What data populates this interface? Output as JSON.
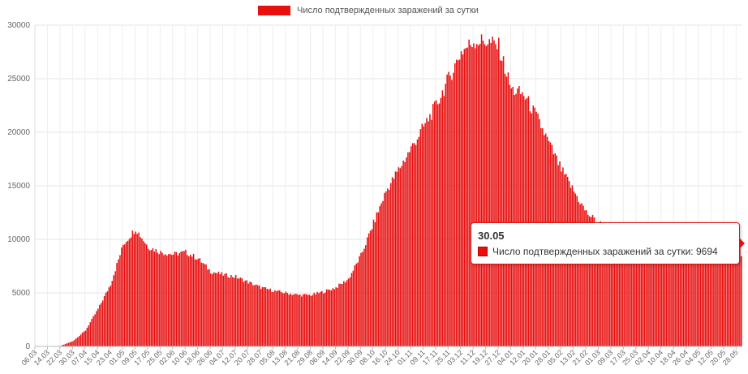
{
  "legend": {
    "label": "Число подтвержденных заражений за сутки",
    "color": "#e80f0f"
  },
  "tooltip": {
    "date": "30.05",
    "label": "Число подтвержденных заражений за сутки: 9694"
  },
  "chart_data": {
    "type": "bar",
    "title": "",
    "xlabel": "",
    "ylabel": "",
    "ylim": [
      0,
      30000
    ],
    "yticks": [
      0,
      5000,
      10000,
      15000,
      20000,
      25000,
      30000
    ],
    "grid": true,
    "legend_position": "top",
    "bar_color": "#e80f0f",
    "xtick_labels": [
      "06.03",
      "14.03",
      "22.03",
      "30.03",
      "07.04",
      "15.04",
      "23.04",
      "01.05",
      "09.05",
      "17.05",
      "25.05",
      "02.06",
      "10.06",
      "18.06",
      "26.06",
      "04.07",
      "12.07",
      "20.07",
      "28.07",
      "05.08",
      "13.08",
      "21.08",
      "29.08",
      "06.09",
      "14.09",
      "22.09",
      "30.09",
      "08.10",
      "16.10",
      "24.10",
      "01.11",
      "09.11",
      "17.11",
      "25.11",
      "03.12",
      "11.12",
      "19.12",
      "27.12",
      "04.01",
      "12.01",
      "20.01",
      "28.01",
      "05.02",
      "13.02",
      "21.02",
      "01.03",
      "09.03",
      "17.03",
      "25.03",
      "02.04",
      "10.04",
      "18.04",
      "26.04",
      "04.05",
      "12.05",
      "20.05",
      "28.05"
    ],
    "series": [
      {
        "name": "Число подтвержденных заражений за сутки",
        "anchors": [
          [
            "06.03",
            0
          ],
          [
            "14.03",
            0
          ],
          [
            "22.03",
            50
          ],
          [
            "30.03",
            500
          ],
          [
            "07.04",
            1500
          ],
          [
            "15.04",
            3500
          ],
          [
            "23.04",
            5800
          ],
          [
            "01.05",
            9500
          ],
          [
            "09.05",
            11000
          ],
          [
            "17.05",
            9300
          ],
          [
            "25.05",
            8800
          ],
          [
            "02.06",
            8600
          ],
          [
            "10.06",
            8800
          ],
          [
            "18.06",
            8200
          ],
          [
            "26.06",
            7000
          ],
          [
            "04.07",
            6700
          ],
          [
            "12.07",
            6500
          ],
          [
            "20.07",
            6000
          ],
          [
            "28.07",
            5500
          ],
          [
            "05.08",
            5200
          ],
          [
            "13.08",
            5000
          ],
          [
            "21.08",
            4800
          ],
          [
            "29.08",
            4800
          ],
          [
            "06.09",
            5100
          ],
          [
            "14.09",
            5500
          ],
          [
            "22.09",
            6300
          ],
          [
            "30.09",
            8500
          ],
          [
            "08.10",
            11500
          ],
          [
            "16.10",
            14500
          ],
          [
            "24.10",
            16500
          ],
          [
            "01.11",
            18500
          ],
          [
            "09.11",
            20500
          ],
          [
            "17.11",
            22500
          ],
          [
            "25.11",
            25000
          ],
          [
            "03.12",
            27500
          ],
          [
            "11.12",
            28500
          ],
          [
            "19.12",
            28500
          ],
          [
            "27.12",
            28000
          ],
          [
            "04.01",
            24000
          ],
          [
            "12.01",
            23500
          ],
          [
            "20.01",
            21500
          ],
          [
            "28.01",
            19000
          ],
          [
            "05.02",
            16500
          ],
          [
            "13.02",
            14500
          ],
          [
            "21.02",
            12500
          ],
          [
            "01.03",
            11500
          ],
          [
            "09.03",
            11000
          ],
          [
            "17.03",
            10000
          ],
          [
            "25.03",
            9500
          ],
          [
            "02.04",
            9000
          ],
          [
            "10.04",
            8800
          ],
          [
            "18.04",
            8800
          ],
          [
            "26.04",
            8500
          ],
          [
            "04.05",
            8800
          ],
          [
            "12.05",
            8500
          ],
          [
            "20.05",
            8800
          ],
          [
            "28.05",
            9500
          ],
          [
            "30.05",
            9694
          ]
        ]
      }
    ]
  }
}
